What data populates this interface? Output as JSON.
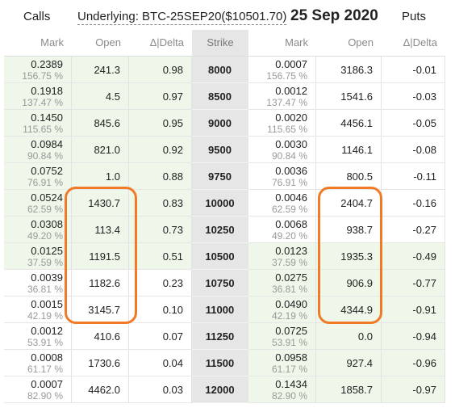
{
  "header": {
    "calls_label": "Calls",
    "underlying": "Underlying: BTC-25SEP20($10501.70)",
    "expiry_date": "25 Sep 2020",
    "puts_label": "Puts"
  },
  "columns": [
    "Mark",
    "Open",
    "Δ|Delta",
    "Strike",
    "Mark",
    "Open",
    "Δ|Delta"
  ],
  "highlight_color": "#f07a26",
  "rows": [
    {
      "call_mark": "0.2389",
      "call_iv": "156.75 %",
      "call_open": "241.3",
      "call_delta": "0.98",
      "strike": "8000",
      "put_mark": "0.0007",
      "put_iv": "156.75 %",
      "put_open": "3186.3",
      "put_delta": "-0.01",
      "call_itm": true,
      "put_itm": false
    },
    {
      "call_mark": "0.1918",
      "call_iv": "137.47 %",
      "call_open": "4.5",
      "call_delta": "0.97",
      "strike": "8500",
      "put_mark": "0.0012",
      "put_iv": "137.47 %",
      "put_open": "1541.6",
      "put_delta": "-0.03",
      "call_itm": true,
      "put_itm": false
    },
    {
      "call_mark": "0.1450",
      "call_iv": "115.65 %",
      "call_open": "845.6",
      "call_delta": "0.95",
      "strike": "9000",
      "put_mark": "0.0020",
      "put_iv": "115.65 %",
      "put_open": "4456.1",
      "put_delta": "-0.05",
      "call_itm": true,
      "put_itm": false
    },
    {
      "call_mark": "0.0984",
      "call_iv": "90.84 %",
      "call_open": "821.0",
      "call_delta": "0.92",
      "strike": "9500",
      "put_mark": "0.0030",
      "put_iv": "90.84 %",
      "put_open": "1146.1",
      "put_delta": "-0.08",
      "call_itm": true,
      "put_itm": false
    },
    {
      "call_mark": "0.0752",
      "call_iv": "76.91 %",
      "call_open": "1.0",
      "call_delta": "0.88",
      "strike": "9750",
      "put_mark": "0.0036",
      "put_iv": "76.91 %",
      "put_open": "800.5",
      "put_delta": "-0.11",
      "call_itm": true,
      "put_itm": false
    },
    {
      "call_mark": "0.0524",
      "call_iv": "62.59 %",
      "call_open": "1430.7",
      "call_delta": "0.83",
      "strike": "10000",
      "put_mark": "0.0046",
      "put_iv": "62.59 %",
      "put_open": "2404.7",
      "put_delta": "-0.16",
      "call_itm": true,
      "put_itm": false
    },
    {
      "call_mark": "0.0308",
      "call_iv": "49.20 %",
      "call_open": "113.4",
      "call_delta": "0.73",
      "strike": "10250",
      "put_mark": "0.0068",
      "put_iv": "49.20 %",
      "put_open": "938.7",
      "put_delta": "-0.27",
      "call_itm": true,
      "put_itm": false
    },
    {
      "call_mark": "0.0125",
      "call_iv": "37.59 %",
      "call_open": "1191.5",
      "call_delta": "0.51",
      "strike": "10500",
      "put_mark": "0.0123",
      "put_iv": "37.59 %",
      "put_open": "1935.3",
      "put_delta": "-0.49",
      "call_itm": true,
      "put_itm": true
    },
    {
      "call_mark": "0.0039",
      "call_iv": "36.81 %",
      "call_open": "1182.6",
      "call_delta": "0.23",
      "strike": "10750",
      "put_mark": "0.0275",
      "put_iv": "36.81 %",
      "put_open": "906.9",
      "put_delta": "-0.77",
      "call_itm": false,
      "put_itm": true
    },
    {
      "call_mark": "0.0015",
      "call_iv": "42.19 %",
      "call_open": "3145.7",
      "call_delta": "0.10",
      "strike": "11000",
      "put_mark": "0.0490",
      "put_iv": "42.19 %",
      "put_open": "4344.9",
      "put_delta": "-0.91",
      "call_itm": false,
      "put_itm": true
    },
    {
      "call_mark": "0.0012",
      "call_iv": "53.91 %",
      "call_open": "410.6",
      "call_delta": "0.07",
      "strike": "11250",
      "put_mark": "0.0725",
      "put_iv": "53.91 %",
      "put_open": "0.0",
      "put_delta": "-0.94",
      "call_itm": false,
      "put_itm": true
    },
    {
      "call_mark": "0.0008",
      "call_iv": "61.17 %",
      "call_open": "1730.6",
      "call_delta": "0.04",
      "strike": "11500",
      "put_mark": "0.0958",
      "put_iv": "61.17 %",
      "put_open": "927.4",
      "put_delta": "-0.96",
      "call_itm": false,
      "put_itm": true
    },
    {
      "call_mark": "0.0007",
      "call_iv": "82.90 %",
      "call_open": "4462.0",
      "call_delta": "0.03",
      "strike": "12000",
      "put_mark": "0.1434",
      "put_iv": "82.90 %",
      "put_open": "1858.7",
      "put_delta": "-0.97",
      "call_itm": false,
      "put_itm": true
    }
  ]
}
